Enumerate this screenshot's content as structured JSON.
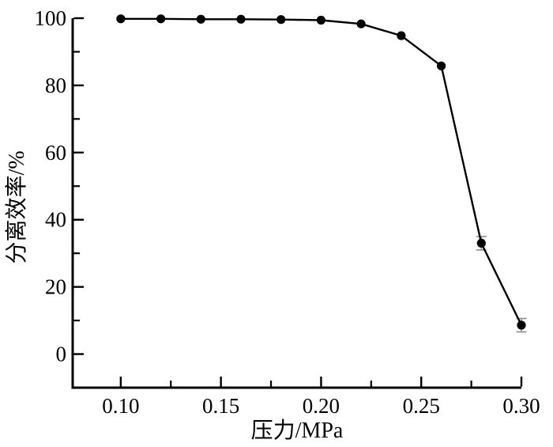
{
  "chart_data": {
    "type": "line",
    "title": "",
    "xlabel": "压力/MPa",
    "ylabel": "分离效率/%",
    "x": [
      0.1,
      0.12,
      0.14,
      0.16,
      0.18,
      0.2,
      0.22,
      0.24,
      0.26,
      0.28,
      0.3
    ],
    "y": [
      99.8,
      99.8,
      99.7,
      99.7,
      99.6,
      99.4,
      98.3,
      94.8,
      85.8,
      33.0,
      8.6
    ],
    "y_errors": [
      0,
      0,
      0,
      0,
      0,
      0,
      0,
      0,
      0,
      2,
      2
    ],
    "x_ticks": [
      0.1,
      0.15,
      0.2,
      0.25,
      0.3
    ],
    "x_tick_labels": [
      "0.10",
      "0.15",
      "0.20",
      "0.25",
      "0.30"
    ],
    "x_minor_ticks": [
      0.125,
      0.175,
      0.225,
      0.275
    ],
    "y_ticks": [
      0,
      20,
      40,
      60,
      80,
      100
    ],
    "y_tick_labels": [
      "0",
      "20",
      "40",
      "60",
      "80",
      "100"
    ],
    "y_minor_ticks": [
      10,
      30,
      50,
      70,
      90
    ],
    "xlim": [
      0.076,
      0.3
    ],
    "ylim": [
      -10,
      100
    ],
    "grid": false,
    "legend": null,
    "marker": "filled-circle",
    "line_color": "#000000",
    "marker_color": "#000000",
    "axis_color": "#000000",
    "error_bar_color": "#8c8c8c",
    "background": "#ffffff"
  }
}
